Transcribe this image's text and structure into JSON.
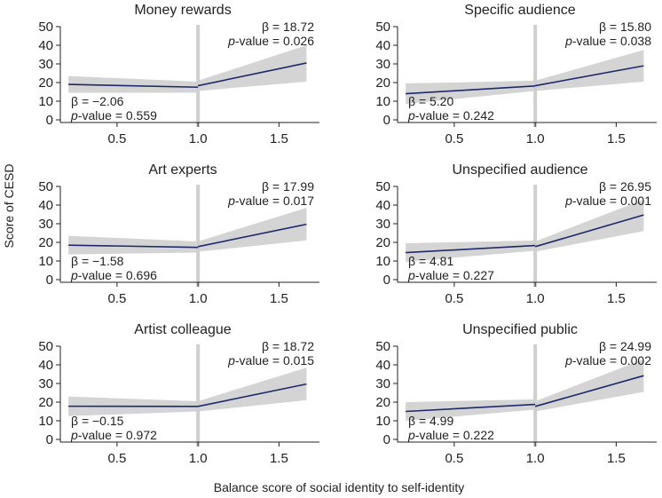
{
  "figure": {
    "xlabel": "Balance score of social identity to self-identity",
    "ylabel": "Score of CESD",
    "beta_symbol": "β",
    "p_italic": "p",
    "p_suffix": "-value = "
  },
  "colors": {
    "line": "#1f2a6b",
    "band": "#d4d4d4",
    "divider": "#cfcfcf",
    "axis": "#222222",
    "text": "#222222"
  },
  "chart_data": [
    {
      "type": "line",
      "title": "Money rewards",
      "xlim": [
        0.15,
        1.75
      ],
      "ylim": [
        0,
        50
      ],
      "xticks": [
        "0.5",
        "1.0",
        "1.5"
      ],
      "yticks": [
        "0",
        "10",
        "20",
        "30",
        "40",
        "50"
      ],
      "breakpoint": 1.0,
      "left": {
        "beta": "−2.06",
        "p": "0.559",
        "x": [
          0.2,
          1.0
        ],
        "y": [
          19,
          17.5
        ],
        "lower": [
          14.5,
          14.5
        ],
        "upper": [
          23.5,
          20.5
        ]
      },
      "right": {
        "beta": "18.72",
        "p": "0.026",
        "x": [
          1.0,
          1.67
        ],
        "y": [
          18.3,
          30.5
        ],
        "lower": [
          15.5,
          20.5
        ],
        "upper": [
          21,
          40
        ]
      }
    },
    {
      "type": "line",
      "title": "Specific audience",
      "xlim": [
        0.15,
        1.75
      ],
      "ylim": [
        0,
        50
      ],
      "xticks": [
        "0.5",
        "1.0",
        "1.5"
      ],
      "yticks": [
        "0",
        "10",
        "20",
        "30",
        "40",
        "50"
      ],
      "breakpoint": 1.0,
      "left": {
        "beta": "5.20",
        "p": "0.242",
        "x": [
          0.2,
          1.0
        ],
        "y": [
          14,
          18.2
        ],
        "lower": [
          8.5,
          15.5
        ],
        "upper": [
          19.5,
          21
        ]
      },
      "right": {
        "beta": "15.80",
        "p": "0.038",
        "x": [
          1.0,
          1.67
        ],
        "y": [
          18.3,
          29
        ],
        "lower": [
          15.5,
          20.5
        ],
        "upper": [
          21,
          37.5
        ]
      }
    },
    {
      "type": "line",
      "title": "Art experts",
      "xlim": [
        0.15,
        1.75
      ],
      "ylim": [
        0,
        50
      ],
      "xticks": [
        "0.5",
        "1.0",
        "1.5"
      ],
      "yticks": [
        "0",
        "10",
        "20",
        "30",
        "40",
        "50"
      ],
      "breakpoint": 1.0,
      "left": {
        "beta": "−1.58",
        "p": "0.696",
        "x": [
          0.2,
          1.0
        ],
        "y": [
          18.5,
          17.3
        ],
        "lower": [
          13.5,
          14.5
        ],
        "upper": [
          23.5,
          20.5
        ]
      },
      "right": {
        "beta": "17.99",
        "p": "0.017",
        "x": [
          1.0,
          1.67
        ],
        "y": [
          17.7,
          29.7
        ],
        "lower": [
          15,
          21
        ],
        "upper": [
          20.5,
          38.5
        ]
      }
    },
    {
      "type": "line",
      "title": "Unspecified audience",
      "xlim": [
        0.15,
        1.75
      ],
      "ylim": [
        0,
        50
      ],
      "xticks": [
        "0.5",
        "1.0",
        "1.5"
      ],
      "yticks": [
        "0",
        "10",
        "20",
        "30",
        "40",
        "50"
      ],
      "breakpoint": 1.0,
      "left": {
        "beta": "4.81",
        "p": "0.227",
        "x": [
          0.2,
          1.0
        ],
        "y": [
          14.5,
          18.3
        ],
        "lower": [
          9.5,
          15.5
        ],
        "upper": [
          19.5,
          21
        ]
      },
      "right": {
        "beta": "26.95",
        "p": "0.001",
        "x": [
          1.0,
          1.67
        ],
        "y": [
          17.7,
          34.7
        ],
        "lower": [
          15,
          26
        ],
        "upper": [
          20.5,
          43
        ]
      }
    },
    {
      "type": "line",
      "title": "Artist colleague",
      "xlim": [
        0.15,
        1.75
      ],
      "ylim": [
        0,
        50
      ],
      "xticks": [
        "0.5",
        "1.0",
        "1.5"
      ],
      "yticks": [
        "0",
        "10",
        "20",
        "30",
        "40",
        "50"
      ],
      "breakpoint": 1.0,
      "left": {
        "beta": "−0.15",
        "p": "0.972",
        "x": [
          0.2,
          1.0
        ],
        "y": [
          17.8,
          17.7
        ],
        "lower": [
          12.5,
          15
        ],
        "upper": [
          23,
          20.5
        ]
      },
      "right": {
        "beta": "18.72",
        "p": "0.015",
        "x": [
          1.0,
          1.67
        ],
        "y": [
          17.7,
          29.7
        ],
        "lower": [
          15,
          21
        ],
        "upper": [
          20.5,
          38.5
        ]
      }
    },
    {
      "type": "line",
      "title": "Unspecified public",
      "xlim": [
        0.15,
        1.75
      ],
      "ylim": [
        0,
        50
      ],
      "xticks": [
        "0.5",
        "1.0",
        "1.5"
      ],
      "yticks": [
        "0",
        "10",
        "20",
        "30",
        "40",
        "50"
      ],
      "breakpoint": 1.0,
      "left": {
        "beta": "4.99",
        "p": "0.222",
        "x": [
          0.2,
          1.0
        ],
        "y": [
          15,
          18.8
        ],
        "lower": [
          10,
          16
        ],
        "upper": [
          20,
          21.5
        ]
      },
      "right": {
        "beta": "24.99",
        "p": "0.002",
        "x": [
          1.0,
          1.67
        ],
        "y": [
          17.7,
          34.2
        ],
        "lower": [
          15,
          25.5
        ],
        "upper": [
          20.5,
          43
        ]
      }
    }
  ]
}
